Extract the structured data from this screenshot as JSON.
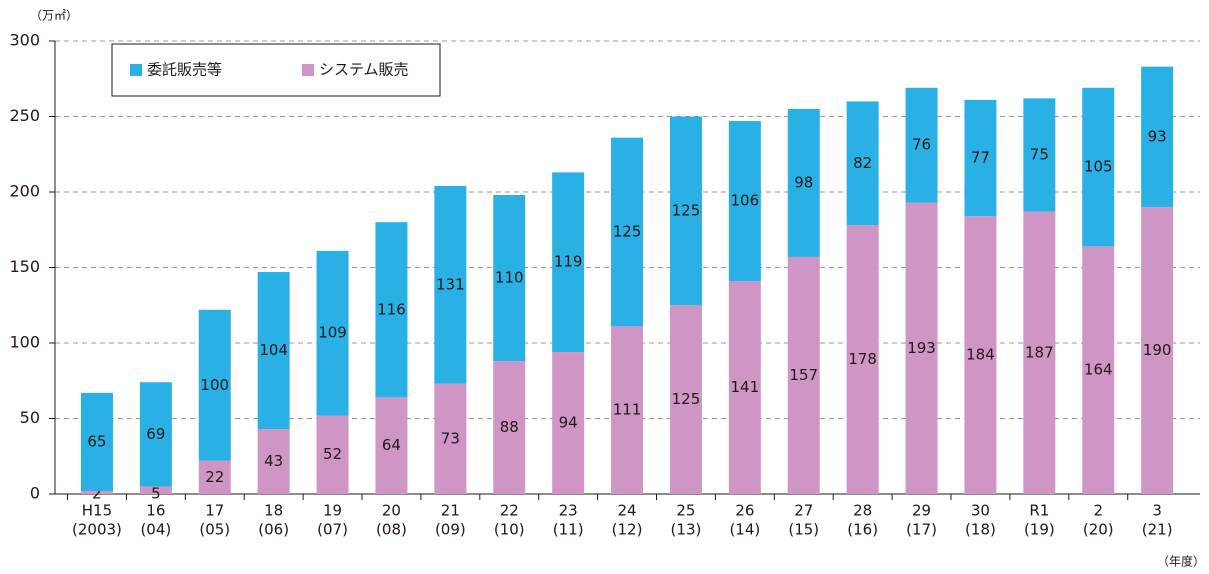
{
  "chart_data": {
    "type": "stacked_bar",
    "y_unit_label": "（万㎡）",
    "x_unit_label": "（年度）",
    "categories": [
      [
        "H15",
        "(2003)"
      ],
      [
        "16",
        "(04)"
      ],
      [
        "17",
        "(05)"
      ],
      [
        "18",
        "(06)"
      ],
      [
        "19",
        "(07)"
      ],
      [
        "20",
        "(08)"
      ],
      [
        "21",
        "(09)"
      ],
      [
        "22",
        "(10)"
      ],
      [
        "23",
        "(11)"
      ],
      [
        "24",
        "(12)"
      ],
      [
        "25",
        "(13)"
      ],
      [
        "26",
        "(14)"
      ],
      [
        "27",
        "(15)"
      ],
      [
        "28",
        "(16)"
      ],
      [
        "29",
        "(17)"
      ],
      [
        "30",
        "(18)"
      ],
      [
        "R1",
        "(19)"
      ],
      [
        "2",
        "(20)"
      ],
      [
        "3",
        "(21)"
      ]
    ],
    "series": [
      {
        "name": "委託販売等",
        "color": "#29b1e5",
        "values": [
          65,
          69,
          100,
          104,
          109,
          116,
          131,
          110,
          119,
          125,
          125,
          106,
          98,
          82,
          76,
          77,
          75,
          105,
          93
        ]
      },
      {
        "name": "システム販売",
        "color": "#cf96c5",
        "values": [
          2,
          5,
          22,
          43,
          52,
          64,
          73,
          88,
          94,
          111,
          125,
          141,
          157,
          178,
          193,
          184,
          187,
          164,
          190
        ]
      }
    ],
    "ylim": [
      0,
      300
    ],
    "yticks": [
      0,
      50,
      100,
      150,
      200,
      250,
      300
    ],
    "grid": true,
    "legend": "top-left"
  }
}
